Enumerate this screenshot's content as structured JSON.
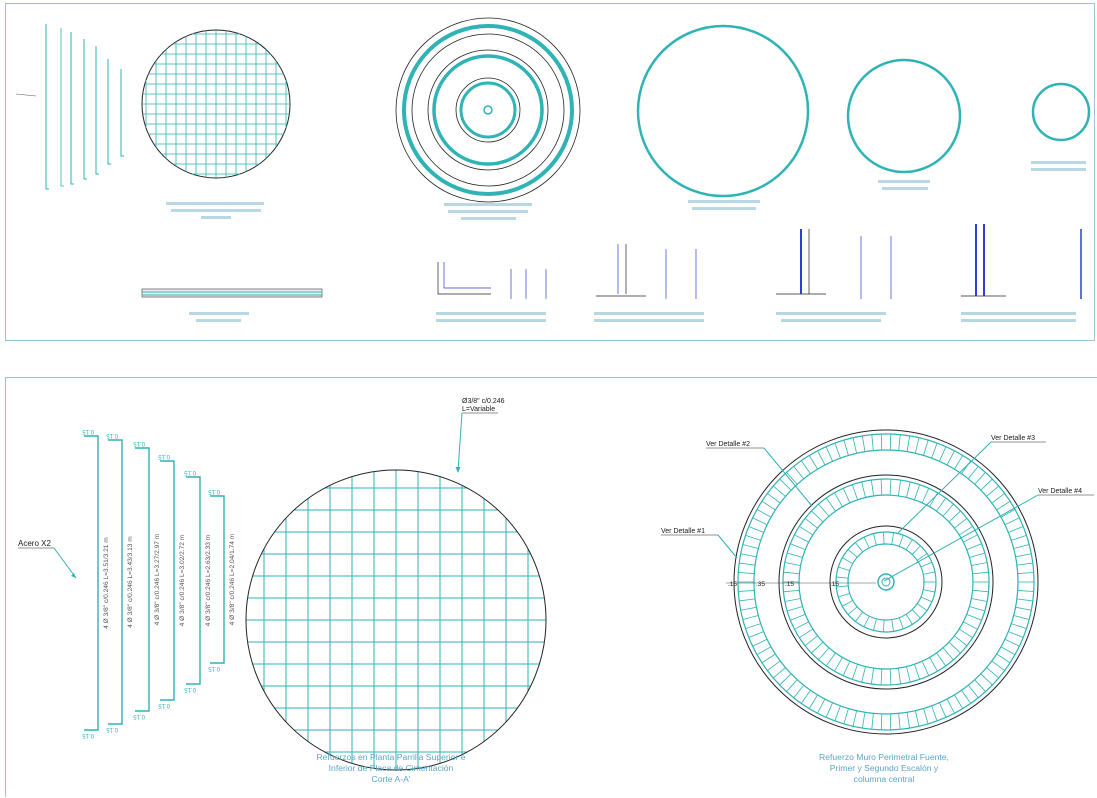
{
  "colors": {
    "rebar": "#2fb3b5",
    "line": "#1a1a1a",
    "caption": "#5aa7c4",
    "panel_border": "#9cc3d6"
  },
  "bottom": {
    "acero_label": "Acero X2",
    "bars": [
      {
        "spec": "4 Ø 3/8\" c/0.246 L=3.51/3.21 m",
        "hook": "0.15"
      },
      {
        "spec": "4 Ø 3/8\" c/0.246 L=3.43/3.13 m",
        "hook": "0.15"
      },
      {
        "spec": "4 Ø 3/8\" c/0.246 L=3.27/2.97 m",
        "hook": "0.15"
      },
      {
        "spec": "4 Ø 3/8\" c/0.246 L=3.02/2.72 m",
        "hook": "0.15"
      },
      {
        "spec": "4 Ø 3/8\" c/0.246 L=2.63/2.33 m",
        "hook": "0.15"
      },
      {
        "spec": "4 Ø 3/8\" c/0.246 L=2.04/1.74 m",
        "hook": "0.15"
      }
    ],
    "grid_note_line1": "Ø3/8\" c/0.246",
    "grid_note_line2": "L=Variable",
    "caption_left": [
      "Refuerzos en Planta Parrilla Superior e",
      "Inferior de Placa de Cimentación",
      "Corte A-A'"
    ],
    "details": [
      "Ver Detalle #1",
      "Ver Detalle #2",
      "Ver Detalle #3",
      "Ver Detalle #4"
    ],
    "dims": [
      ".15",
      ".35",
      ".15",
      ".15"
    ],
    "caption_right": [
      "Refuerzo Muro Perimetral Fuente,",
      "Primer y Segundo Escalón y",
      "columna central"
    ]
  }
}
